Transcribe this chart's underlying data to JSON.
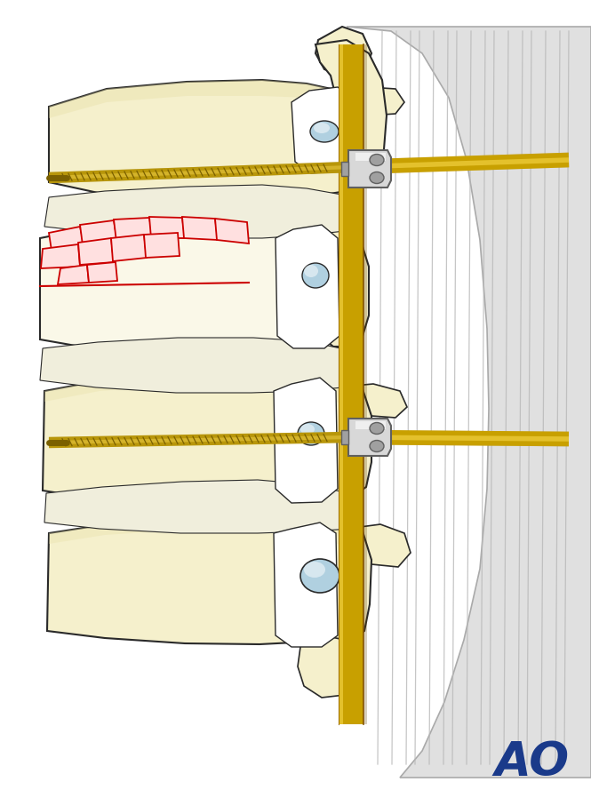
{
  "bg_color": "#ffffff",
  "bone_fill": "#f5f0cc",
  "bone_fill_light": "#faf8e8",
  "bone_fill_dark": "#e8e0a8",
  "bone_outline": "#2a2a2a",
  "screw_gold": "#b8960a",
  "screw_highlight": "#e8c840",
  "screw_dark": "#7a6000",
  "rod_gold": "#c8a000",
  "rod_highlight": "#f0d040",
  "rod_dark": "#805000",
  "clamp_light": "#d8d8d8",
  "clamp_mid": "#a0a0a0",
  "clamp_dark": "#606060",
  "fracture_red": "#cc0000",
  "fracture_fill": "#ffe0e0",
  "pedicle_blue": "#88b8c8",
  "pedicle_blue2": "#b0d0e0",
  "canal_white": "#ffffff",
  "skin_fill": "#e0e0e0",
  "skin_line": "#b8b8b8",
  "ao_blue": "#1a3a8a",
  "disc_white": "#f0f0f0",
  "disc_outline": "#555555"
}
